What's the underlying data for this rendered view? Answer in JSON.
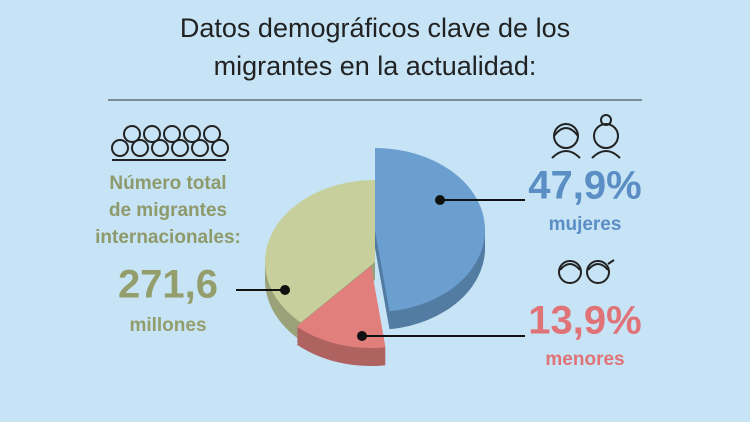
{
  "chart_data": {
    "type": "pie",
    "title": [
      "Datos demográficos clave de los",
      "migrantes en la actualidad:"
    ],
    "categories": [
      "mujeres",
      "menores",
      null
    ],
    "values": [
      47.9,
      13.9,
      38.2
    ],
    "value_labels": [
      "47,9%",
      "13,9%",
      null
    ],
    "colors": [
      "#6b9fd0",
      "#e07f7c",
      "#c7d09c"
    ],
    "total": {
      "text": [
        "Número total",
        "de migrantes",
        "internacionales:"
      ],
      "value": 271.6,
      "label": "271,6",
      "unit": "millones"
    }
  }
}
